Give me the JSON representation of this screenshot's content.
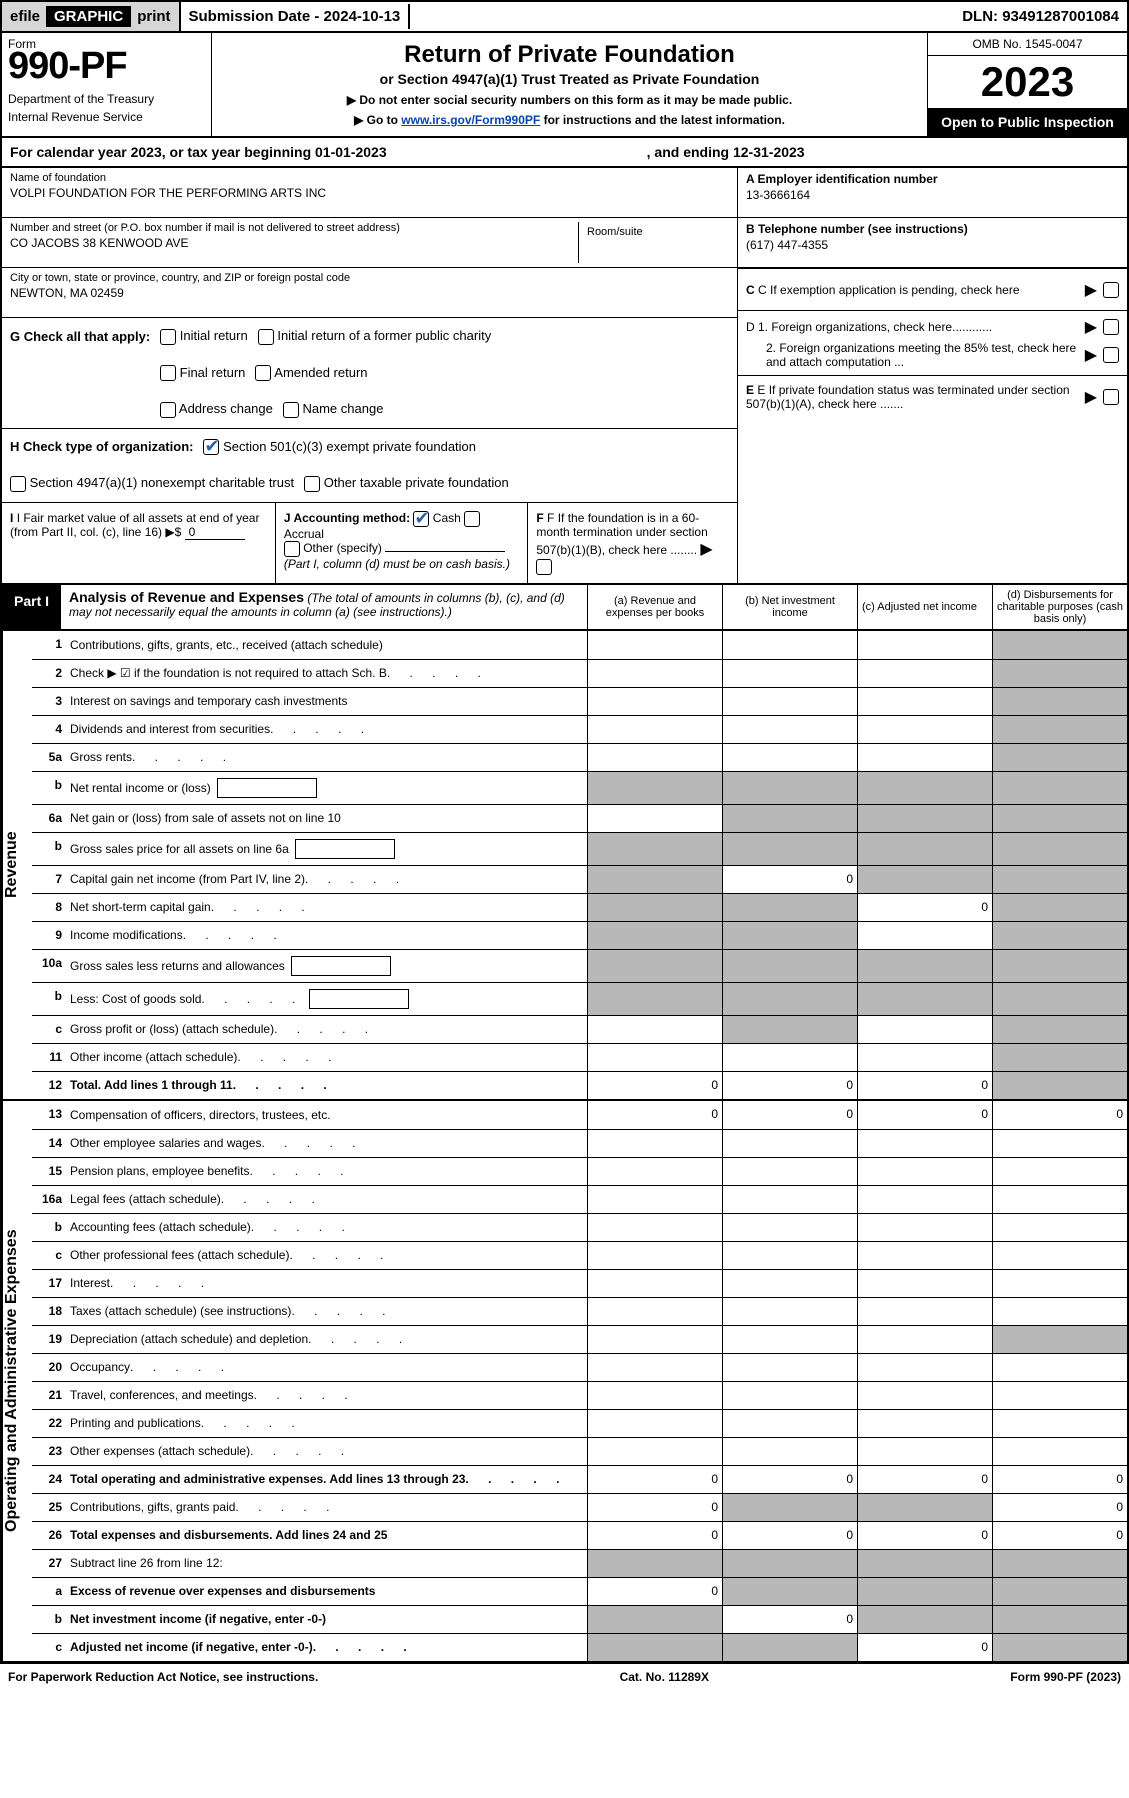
{
  "top": {
    "efile": "efile",
    "graphic": "GRAPHIC",
    "print": "print",
    "sub_label": "Submission Date - 2024-10-13",
    "dln": "DLN: 93491287001084"
  },
  "header": {
    "form_label": "Form",
    "form_num": "990-PF",
    "dept1": "Department of the Treasury",
    "dept2": "Internal Revenue Service",
    "title": "Return of Private Foundation",
    "subtitle": "or Section 4947(a)(1) Trust Treated as Private Foundation",
    "inst1": "▶ Do not enter social security numbers on this form as it may be made public.",
    "inst2": "▶ Go to ",
    "inst2_link": "www.irs.gov/Form990PF",
    "inst2_rest": " for instructions and the latest information.",
    "omb": "OMB No. 1545-0047",
    "year": "2023",
    "open": "Open to Public Inspection"
  },
  "cal": {
    "begin": "For calendar year 2023, or tax year beginning 01-01-2023",
    "end": ", and ending 12-31-2023"
  },
  "info": {
    "name_lbl": "Name of foundation",
    "name_val": "VOLPI FOUNDATION FOR THE PERFORMING ARTS INC",
    "addr_lbl": "Number and street (or P.O. box number if mail is not delivered to street address)",
    "addr_val": "CO JACOBS 38 KENWOOD AVE",
    "room_lbl": "Room/suite",
    "city_lbl": "City or town, state or province, country, and ZIP or foreign postal code",
    "city_val": "NEWTON, MA  02459",
    "ein_lbl": "A Employer identification number",
    "ein_val": "13-3666164",
    "tel_lbl": "B Telephone number (see instructions)",
    "tel_val": "(617) 447-4355",
    "c_lbl": "C If exemption application is pending, check here",
    "g_lbl": "G Check all that apply:",
    "g_opts": [
      "Initial return",
      "Initial return of a former public charity",
      "Final return",
      "Amended return",
      "Address change",
      "Name change"
    ],
    "d1": "D 1. Foreign organizations, check here............",
    "d2": "2. Foreign organizations meeting the 85% test, check here and attach computation ...",
    "h_lbl": "H Check type of organization:",
    "h_opt1": "Section 501(c)(3) exempt private foundation",
    "h_opt2": "Section 4947(a)(1) nonexempt charitable trust",
    "h_opt3": "Other taxable private foundation",
    "e_lbl": "E If private foundation status was terminated under section 507(b)(1)(A), check here .......",
    "i_lbl": "I Fair market value of all assets at end of year (from Part II, col. (c), line 16) ▶$",
    "i_val": "0",
    "j_lbl": "J Accounting method:",
    "j_cash": "Cash",
    "j_acc": "Accrual",
    "j_other": "Other (specify)",
    "j_note": "(Part I, column (d) must be on cash basis.)",
    "f_lbl": "F If the foundation is in a 60-month termination under section 507(b)(1)(B), check here ........"
  },
  "part1": {
    "tab": "Part I",
    "title": "Analysis of Revenue and Expenses",
    "sub": " (The total of amounts in columns (b), (c), and (d) may not necessarily equal the amounts in column (a) (see instructions).)",
    "col_a": "(a) Revenue and expenses per books",
    "col_b": "(b) Net investment income",
    "col_c": "(c) Adjusted net income",
    "col_d": "(d) Disbursements for charitable purposes (cash basis only)"
  },
  "revenue_rows": [
    {
      "n": "1",
      "d": "Contributions, gifts, grants, etc., received (attach schedule)",
      "g": [
        false,
        false,
        false,
        true
      ]
    },
    {
      "n": "2",
      "d": "Check ▶ ☑ if the foundation is not required to attach Sch. B",
      "dots": true,
      "g": [
        false,
        false,
        false,
        true
      ]
    },
    {
      "n": "3",
      "d": "Interest on savings and temporary cash investments",
      "g": [
        false,
        false,
        false,
        true
      ]
    },
    {
      "n": "4",
      "d": "Dividends and interest from securities",
      "dots": true,
      "g": [
        false,
        false,
        false,
        true
      ]
    },
    {
      "n": "5a",
      "d": "Gross rents",
      "dots": true,
      "g": [
        false,
        false,
        false,
        true
      ]
    },
    {
      "n": "b",
      "d": "Net rental income or (loss)",
      "box": true,
      "g": [
        true,
        true,
        true,
        true
      ]
    },
    {
      "n": "6a",
      "d": "Net gain or (loss) from sale of assets not on line 10",
      "g": [
        false,
        true,
        true,
        true
      ]
    },
    {
      "n": "b",
      "d": "Gross sales price for all assets on line 6a",
      "box": true,
      "g": [
        true,
        true,
        true,
        true
      ]
    },
    {
      "n": "7",
      "d": "Capital gain net income (from Part IV, line 2)",
      "dots": true,
      "g": [
        true,
        false,
        true,
        true
      ],
      "vals": [
        "",
        "0",
        "",
        ""
      ]
    },
    {
      "n": "8",
      "d": "Net short-term capital gain",
      "dots": true,
      "g": [
        true,
        true,
        false,
        true
      ],
      "vals": [
        "",
        "",
        "0",
        ""
      ]
    },
    {
      "n": "9",
      "d": "Income modifications",
      "dots": true,
      "g": [
        true,
        true,
        false,
        true
      ]
    },
    {
      "n": "10a",
      "d": "Gross sales less returns and allowances",
      "box": true,
      "g": [
        true,
        true,
        true,
        true
      ]
    },
    {
      "n": "b",
      "d": "Less: Cost of goods sold",
      "dots": true,
      "box": true,
      "g": [
        true,
        true,
        true,
        true
      ]
    },
    {
      "n": "c",
      "d": "Gross profit or (loss) (attach schedule)",
      "dots": true,
      "g": [
        false,
        true,
        false,
        true
      ]
    },
    {
      "n": "11",
      "d": "Other income (attach schedule)",
      "dots": true,
      "g": [
        false,
        false,
        false,
        true
      ]
    },
    {
      "n": "12",
      "d": "Total. Add lines 1 through 11",
      "dots": true,
      "bold": true,
      "g": [
        false,
        false,
        false,
        true
      ],
      "vals": [
        "0",
        "0",
        "0",
        ""
      ]
    }
  ],
  "expense_rows": [
    {
      "n": "13",
      "d": "Compensation of officers, directors, trustees, etc.",
      "g": [
        false,
        false,
        false,
        false
      ],
      "vals": [
        "0",
        "0",
        "0",
        "0"
      ]
    },
    {
      "n": "14",
      "d": "Other employee salaries and wages",
      "dots": true,
      "g": [
        false,
        false,
        false,
        false
      ]
    },
    {
      "n": "15",
      "d": "Pension plans, employee benefits",
      "dots": true,
      "g": [
        false,
        false,
        false,
        false
      ]
    },
    {
      "n": "16a",
      "d": "Legal fees (attach schedule)",
      "dots": true,
      "g": [
        false,
        false,
        false,
        false
      ]
    },
    {
      "n": "b",
      "d": "Accounting fees (attach schedule)",
      "dots": true,
      "g": [
        false,
        false,
        false,
        false
      ]
    },
    {
      "n": "c",
      "d": "Other professional fees (attach schedule)",
      "dots": true,
      "g": [
        false,
        false,
        false,
        false
      ]
    },
    {
      "n": "17",
      "d": "Interest",
      "dots": true,
      "g": [
        false,
        false,
        false,
        false
      ]
    },
    {
      "n": "18",
      "d": "Taxes (attach schedule) (see instructions)",
      "dots": true,
      "g": [
        false,
        false,
        false,
        false
      ]
    },
    {
      "n": "19",
      "d": "Depreciation (attach schedule) and depletion",
      "dots": true,
      "g": [
        false,
        false,
        false,
        true
      ]
    },
    {
      "n": "20",
      "d": "Occupancy",
      "dots": true,
      "g": [
        false,
        false,
        false,
        false
      ]
    },
    {
      "n": "21",
      "d": "Travel, conferences, and meetings",
      "dots": true,
      "g": [
        false,
        false,
        false,
        false
      ]
    },
    {
      "n": "22",
      "d": "Printing and publications",
      "dots": true,
      "g": [
        false,
        false,
        false,
        false
      ]
    },
    {
      "n": "23",
      "d": "Other expenses (attach schedule)",
      "dots": true,
      "g": [
        false,
        false,
        false,
        false
      ]
    },
    {
      "n": "24",
      "d": "Total operating and administrative expenses. Add lines 13 through 23",
      "dots": true,
      "bold": true,
      "g": [
        false,
        false,
        false,
        false
      ],
      "vals": [
        "0",
        "0",
        "0",
        "0"
      ]
    },
    {
      "n": "25",
      "d": "Contributions, gifts, grants paid",
      "dots": true,
      "g": [
        false,
        true,
        true,
        false
      ],
      "vals": [
        "0",
        "",
        "",
        "0"
      ]
    },
    {
      "n": "26",
      "d": "Total expenses and disbursements. Add lines 24 and 25",
      "bold": true,
      "g": [
        false,
        false,
        false,
        false
      ],
      "vals": [
        "0",
        "0",
        "0",
        "0"
      ]
    },
    {
      "n": "27",
      "d": "Subtract line 26 from line 12:",
      "g": [
        true,
        true,
        true,
        true
      ]
    },
    {
      "n": "a",
      "d": "Excess of revenue over expenses and disbursements",
      "bold": true,
      "g": [
        false,
        true,
        true,
        true
      ],
      "vals": [
        "0",
        "",
        "",
        ""
      ]
    },
    {
      "n": "b",
      "d": "Net investment income (if negative, enter -0-)",
      "bold": true,
      "g": [
        true,
        false,
        true,
        true
      ],
      "vals": [
        "",
        "0",
        "",
        ""
      ]
    },
    {
      "n": "c",
      "d": "Adjusted net income (if negative, enter -0-)",
      "dots": true,
      "bold": true,
      "g": [
        true,
        true,
        false,
        true
      ],
      "vals": [
        "",
        "",
        "0",
        ""
      ]
    }
  ],
  "side_labels": {
    "rev": "Revenue",
    "exp": "Operating and Administrative Expenses"
  },
  "footer": {
    "left": "For Paperwork Reduction Act Notice, see instructions.",
    "mid": "Cat. No. 11289X",
    "right": "Form 990-PF (2023)"
  }
}
